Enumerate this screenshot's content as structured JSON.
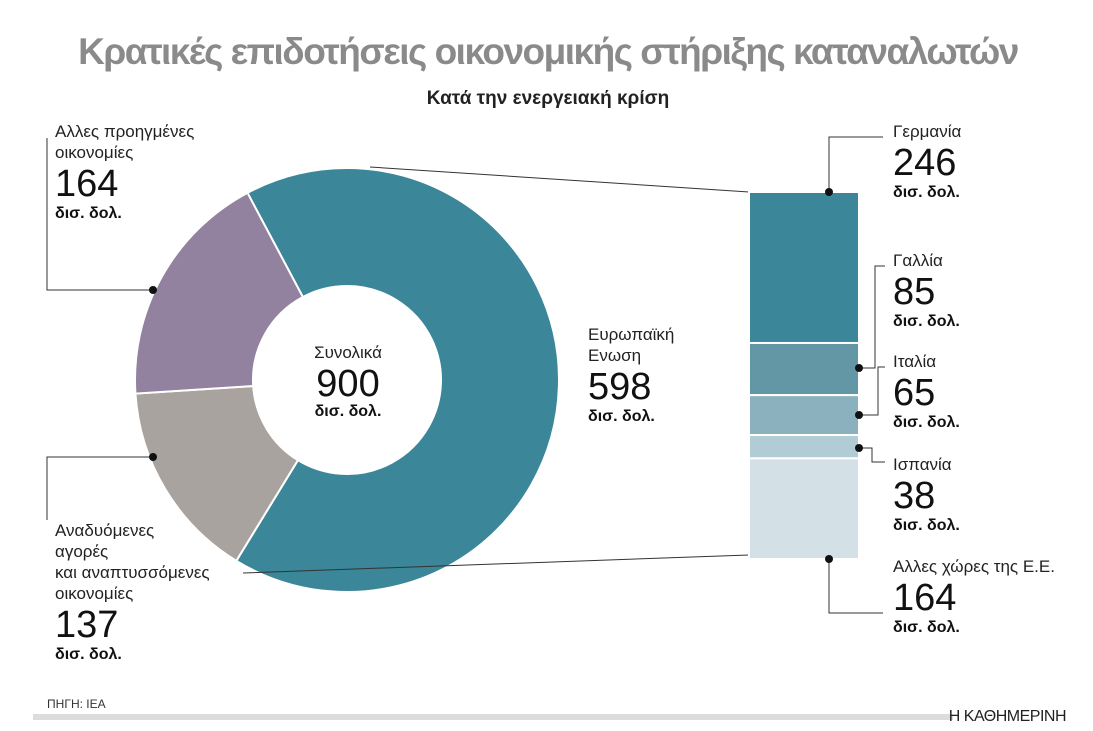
{
  "chart_data": [
    {
      "type": "pie",
      "variant": "donut",
      "title": "Κρατικές επιδοτήσεις οικονομικής στήριξης καταναλωτών",
      "subtitle": "Κατά την ενεργειακή κρίση",
      "center": {
        "label": "Συνολικά",
        "value": 900,
        "unit": "δισ. δολ."
      },
      "slices": [
        {
          "name": "Ευρωπαϊκή Ενωση",
          "name_lines": [
            "Ευρωπαϊκή",
            "Ενωση"
          ],
          "value": 598,
          "unit": "δισ. δολ.",
          "color": "#3b8698"
        },
        {
          "name": "Αναδυόμενες αγορές και αναπτυσσόμενες οικονομίες",
          "name_lines": [
            "Αναδυόμενες",
            "αγορές",
            "και αναπτυσσόμενες",
            "οικονομίες"
          ],
          "value": 137,
          "unit": "δισ. δολ.",
          "color": "#a8a39f"
        },
        {
          "name": "Αλλες προηγμένες οικονομίες",
          "name_lines": [
            "Αλλες προηγμένες",
            "οικονομίες"
          ],
          "value": 164,
          "unit": "δισ. δολ.",
          "color": "#92819f"
        }
      ]
    },
    {
      "type": "bar",
      "variant": "stacked-breakdown",
      "parent": "Ευρωπαϊκή Ενωση",
      "segments": [
        {
          "name": "Γερμανία",
          "value": 246,
          "unit": "δισ. δολ.",
          "color": "#3b8698"
        },
        {
          "name": "Γαλλία",
          "value": 85,
          "unit": "δισ. δολ.",
          "color": "#6497a6"
        },
        {
          "name": "Ιταλία",
          "value": 65,
          "unit": "δισ. δολ.",
          "color": "#8ab1bd"
        },
        {
          "name": "Ισπανία",
          "value": 38,
          "unit": "δισ. δολ.",
          "color": "#b1ccd5"
        },
        {
          "name": "Αλλες χώρες της Ε.Ε.",
          "value": 164,
          "unit": "δισ. δολ.",
          "color": "#d3e1e6"
        }
      ]
    }
  ],
  "footer": {
    "source": "ΠΗΓΗ: IEA",
    "brand": "Η ΚΑΘΗΜΕΡΙΝΗ"
  }
}
